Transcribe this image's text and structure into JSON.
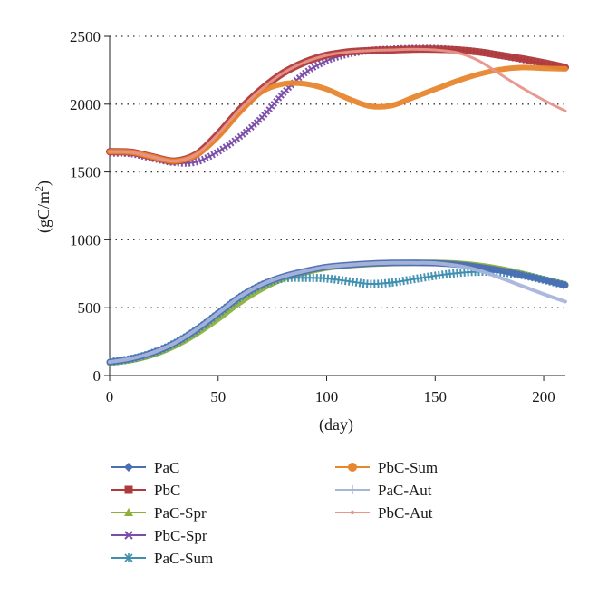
{
  "chart_data": {
    "type": "line",
    "xlabel": "(day)",
    "ylabel": "(gC/m2)",
    "xlim": [
      0,
      210
    ],
    "ylim": [
      0,
      2500
    ],
    "xticks": [
      0,
      50,
      100,
      150,
      200
    ],
    "yticks": [
      0,
      500,
      1000,
      1500,
      2000,
      2500
    ],
    "grid": "horizontal dotted",
    "legend_position": "bottom, two columns",
    "series": [
      {
        "name": "PaC",
        "color": "#4a6fb5",
        "marker": "diamond",
        "x": [
          0,
          10,
          20,
          30,
          40,
          50,
          60,
          70,
          80,
          90,
          100,
          110,
          120,
          130,
          140,
          150,
          160,
          170,
          180,
          190,
          200,
          210
        ],
        "y": [
          100,
          125,
          170,
          240,
          340,
          460,
          580,
          670,
          730,
          770,
          800,
          815,
          825,
          830,
          830,
          828,
          818,
          800,
          775,
          740,
          705,
          665
        ]
      },
      {
        "name": "PbC",
        "color": "#b03a3a",
        "marker": "square",
        "x": [
          0,
          10,
          20,
          30,
          40,
          50,
          60,
          70,
          80,
          90,
          100,
          110,
          120,
          130,
          140,
          150,
          160,
          170,
          180,
          190,
          200,
          210
        ],
        "y": [
          1650,
          1645,
          1610,
          1580,
          1630,
          1780,
          1960,
          2110,
          2230,
          2310,
          2360,
          2385,
          2395,
          2400,
          2405,
          2405,
          2400,
          2385,
          2360,
          2335,
          2305,
          2270
        ]
      },
      {
        "name": "PaC-Spr",
        "color": "#8db03c",
        "marker": "triangle",
        "x": [
          0,
          10,
          20,
          30,
          40,
          50,
          60,
          70,
          80,
          90,
          100,
          110,
          120,
          130,
          140,
          150,
          160,
          170,
          180,
          190,
          200,
          210
        ],
        "y": [
          95,
          115,
          155,
          220,
          310,
          420,
          540,
          640,
          715,
          760,
          795,
          812,
          822,
          828,
          830,
          830,
          825,
          810,
          785,
          750,
          710,
          670
        ]
      },
      {
        "name": "PbC-Spr",
        "color": "#7a4ea8",
        "marker": "x",
        "x": [
          0,
          10,
          20,
          30,
          40,
          50,
          60,
          70,
          80,
          90,
          100,
          110,
          120,
          130,
          140,
          150,
          160,
          170,
          180,
          190,
          200,
          210
        ],
        "y": [
          1640,
          1635,
          1600,
          1570,
          1575,
          1650,
          1760,
          1900,
          2080,
          2230,
          2320,
          2370,
          2395,
          2405,
          2410,
          2410,
          2400,
          2385,
          2360,
          2330,
          2300,
          2270
        ]
      },
      {
        "name": "PaC-Sum",
        "color": "#3f8fb0",
        "marker": "asterisk",
        "x": [
          0,
          10,
          20,
          30,
          40,
          50,
          60,
          70,
          80,
          90,
          100,
          110,
          120,
          130,
          140,
          150,
          160,
          170,
          180,
          190,
          200,
          210
        ],
        "y": [
          100,
          122,
          168,
          238,
          335,
          455,
          575,
          665,
          715,
          720,
          715,
          695,
          675,
          685,
          710,
          735,
          755,
          765,
          760,
          740,
          705,
          665
        ]
      },
      {
        "name": "PbC-Sum",
        "color": "#e8862e",
        "marker": "circle",
        "x": [
          0,
          10,
          20,
          30,
          40,
          50,
          60,
          70,
          80,
          90,
          100,
          110,
          120,
          130,
          140,
          150,
          160,
          170,
          180,
          190,
          200,
          210
        ],
        "y": [
          1650,
          1645,
          1610,
          1580,
          1625,
          1760,
          1940,
          2090,
          2150,
          2150,
          2110,
          2040,
          1985,
          1990,
          2050,
          2110,
          2170,
          2220,
          2255,
          2270,
          2265,
          2260
        ]
      },
      {
        "name": "PaC-Aut",
        "color": "#a9b4dc",
        "marker": "plus",
        "x": [
          0,
          10,
          20,
          30,
          40,
          50,
          60,
          70,
          80,
          90,
          100,
          110,
          120,
          130,
          140,
          150,
          160,
          170,
          180,
          190,
          200,
          210
        ],
        "y": [
          100,
          125,
          170,
          240,
          340,
          460,
          580,
          670,
          730,
          770,
          800,
          815,
          825,
          830,
          830,
          828,
          810,
          775,
          720,
          660,
          600,
          545
        ]
      },
      {
        "name": "PbC-Aut",
        "color": "#e8958a",
        "marker": "dot",
        "x": [
          0,
          10,
          20,
          30,
          40,
          50,
          60,
          70,
          80,
          90,
          100,
          110,
          120,
          130,
          140,
          150,
          160,
          170,
          180,
          190,
          200,
          210
        ],
        "y": [
          1650,
          1645,
          1610,
          1580,
          1630,
          1780,
          1960,
          2110,
          2230,
          2310,
          2360,
          2385,
          2395,
          2400,
          2405,
          2400,
          2380,
          2320,
          2220,
          2120,
          2030,
          1950
        ]
      }
    ]
  }
}
